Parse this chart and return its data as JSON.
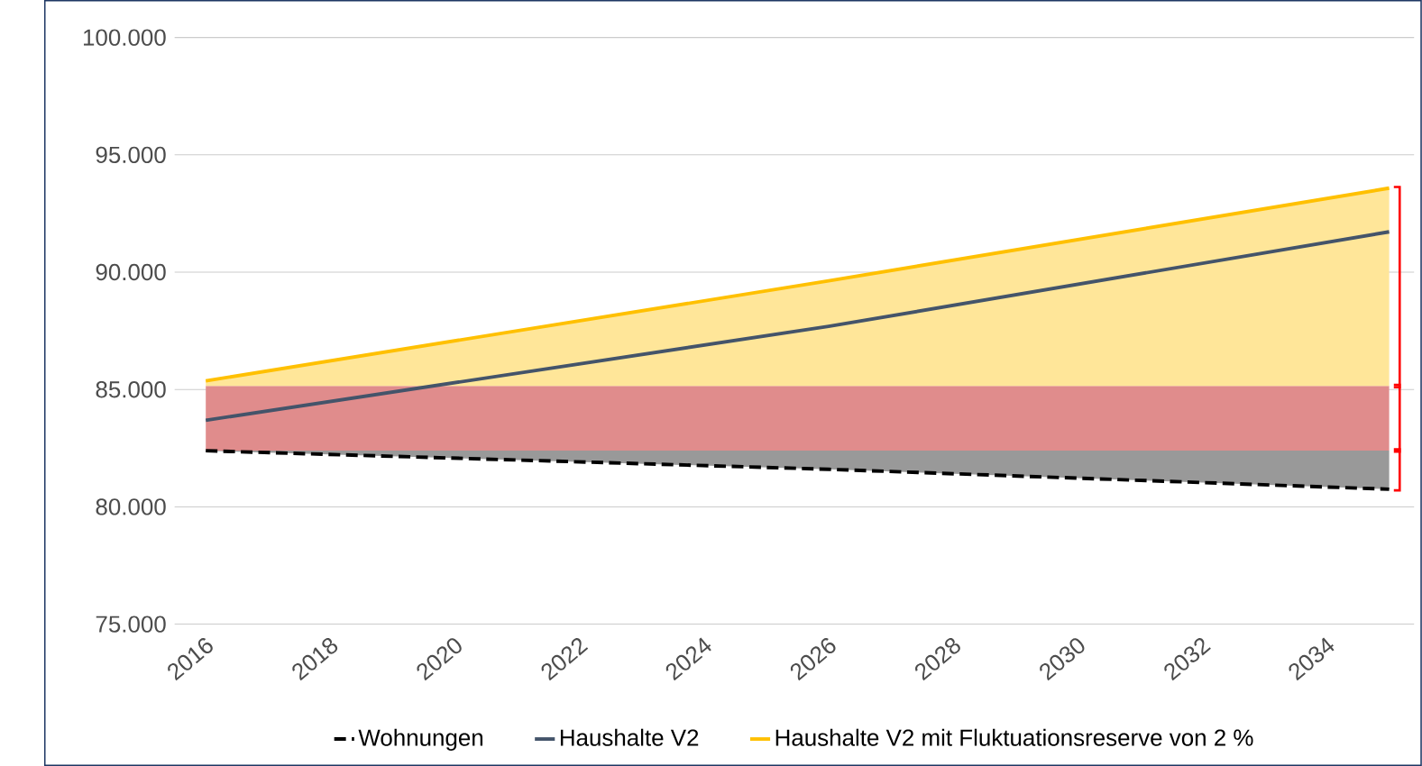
{
  "chart_data": {
    "type": "line",
    "x": [
      2016,
      2026,
      2035
    ],
    "series": [
      {
        "name": "Wohnungen",
        "color": "#000000",
        "line_style": "dashed",
        "values": [
          82390,
          81600,
          80750
        ],
        "lower": [
          82390,
          81600,
          80750
        ],
        "upper": [
          82400,
          82400,
          82400
        ]
      },
      {
        "name": "Haushalte V2",
        "color": "#44546a",
        "line_style": "solid",
        "values": [
          83690,
          87690,
          91720
        ]
      },
      {
        "name": "Haushalte V2 mit Fluktuationsreserve von 2 %",
        "color": "#ffc000",
        "line_style": "solid",
        "values": [
          85370,
          89630,
          93580
        ],
        "lower": [
          85150,
          85150,
          85150
        ],
        "upper": [
          85370,
          89630,
          93580
        ]
      }
    ],
    "bands": [
      {
        "axis": "y",
        "from": 82400,
        "to": 85150,
        "color": "#e08c8c"
      }
    ],
    "xlim": [
      2015.5,
      2035.4
    ],
    "xticks": [
      2016,
      2018,
      2020,
      2022,
      2024,
      2026,
      2028,
      2030,
      2032,
      2034
    ],
    "ylim": [
      75000,
      100000
    ],
    "yticks": [
      {
        "value": 75000,
        "label": "75.000"
      },
      {
        "value": 80000,
        "label": "80.000"
      },
      {
        "value": 85000,
        "label": "85.000"
      },
      {
        "value": 90000,
        "label": "90.000"
      },
      {
        "value": 95000,
        "label": "95.000"
      },
      {
        "value": 100000,
        "label": "100.000"
      }
    ],
    "grid": "y",
    "legend": "bottom"
  }
}
